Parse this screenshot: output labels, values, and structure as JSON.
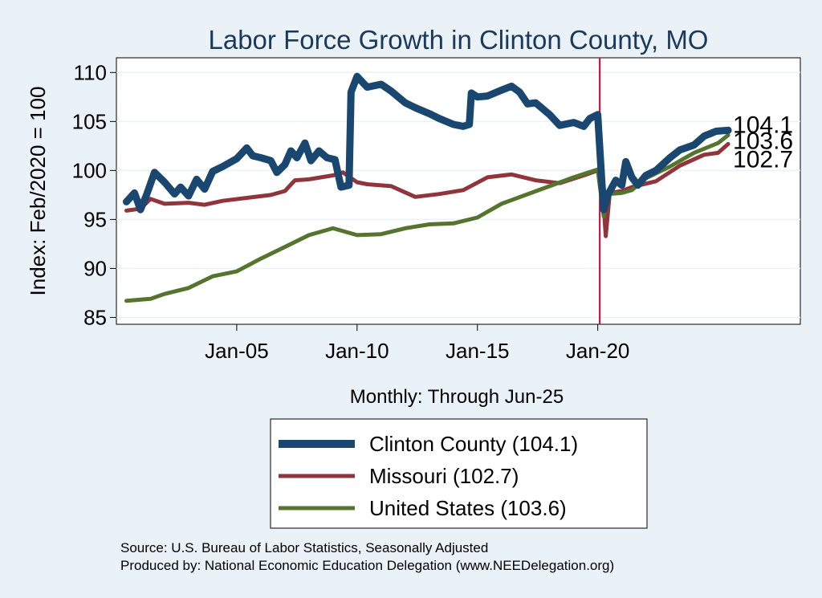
{
  "colors": {
    "background": "#eaf1f7",
    "plot_background": "#ffffff",
    "clinton": "#1a476f",
    "missouri": "#90353b",
    "united_states": "#55752f",
    "reference_line": "#c10534",
    "title": "#1a3a5c",
    "grid": "#eaf1f7"
  },
  "chart_data": {
    "type": "line",
    "title": "Labor Force Growth in Clinton  County, MO",
    "xlabel": "Monthly: Through Jun-25",
    "ylabel": "Index: Feb/2020 = 100",
    "ylim": [
      84.3,
      111.5
    ],
    "xlim": [
      "2000-01",
      "2028-06"
    ],
    "yticks": [
      85,
      90,
      95,
      100,
      105,
      110
    ],
    "xticks": [
      {
        "date": "2005-01",
        "label": "Jan-05"
      },
      {
        "date": "2010-01",
        "label": "Jan-10"
      },
      {
        "date": "2015-01",
        "label": "Jan-15"
      },
      {
        "date": "2020-01",
        "label": "Jan-20"
      }
    ],
    "reference_line": {
      "date": "2020-02"
    },
    "grid": true,
    "series": [
      {
        "name": "Clinton  County (104.1)",
        "key": "clinton",
        "end_label": "104.1",
        "points": [
          [
            "2000-06",
            96.8
          ],
          [
            "2000-10",
            97.7
          ],
          [
            "2001-01",
            96.0
          ],
          [
            "2001-04",
            97.5
          ],
          [
            "2001-08",
            99.8
          ],
          [
            "2002-01",
            98.8
          ],
          [
            "2002-06",
            97.6
          ],
          [
            "2002-09",
            98.3
          ],
          [
            "2003-01",
            97.4
          ],
          [
            "2003-05",
            99.1
          ],
          [
            "2003-09",
            98.1
          ],
          [
            "2004-01",
            99.9
          ],
          [
            "2004-06",
            100.4
          ],
          [
            "2005-01",
            101.2
          ],
          [
            "2005-06",
            102.3
          ],
          [
            "2005-09",
            101.5
          ],
          [
            "2006-01",
            101.3
          ],
          [
            "2006-06",
            101.0
          ],
          [
            "2006-09",
            99.8
          ],
          [
            "2007-01",
            100.6
          ],
          [
            "2007-04",
            102.0
          ],
          [
            "2007-07",
            101.3
          ],
          [
            "2007-11",
            102.8
          ],
          [
            "2008-02",
            101.0
          ],
          [
            "2008-06",
            102.0
          ],
          [
            "2008-10",
            101.3
          ],
          [
            "2009-02",
            101.1
          ],
          [
            "2009-05",
            98.3
          ],
          [
            "2009-09",
            98.5
          ],
          [
            "2009-10",
            108.0
          ],
          [
            "2010-01",
            109.6
          ],
          [
            "2010-06",
            108.5
          ],
          [
            "2011-01",
            108.8
          ],
          [
            "2011-06",
            108.1
          ],
          [
            "2012-01",
            106.9
          ],
          [
            "2012-06",
            106.4
          ],
          [
            "2013-01",
            105.8
          ],
          [
            "2013-06",
            105.3
          ],
          [
            "2014-01",
            104.7
          ],
          [
            "2014-06",
            104.5
          ],
          [
            "2014-09",
            104.7
          ],
          [
            "2014-10",
            107.9
          ],
          [
            "2015-01",
            107.5
          ],
          [
            "2015-06",
            107.6
          ],
          [
            "2016-01",
            108.2
          ],
          [
            "2016-06",
            108.6
          ],
          [
            "2016-10",
            108.0
          ],
          [
            "2017-02",
            106.8
          ],
          [
            "2017-06",
            106.9
          ],
          [
            "2018-01",
            105.7
          ],
          [
            "2018-06",
            104.6
          ],
          [
            "2019-01",
            104.9
          ],
          [
            "2019-06",
            104.5
          ],
          [
            "2019-09",
            105.3
          ],
          [
            "2020-01",
            105.7
          ],
          [
            "2020-03",
            99.0
          ],
          [
            "2020-04",
            96.0
          ],
          [
            "2020-06",
            97.5
          ],
          [
            "2020-10",
            99.0
          ],
          [
            "2021-01",
            98.5
          ],
          [
            "2021-03",
            100.9
          ],
          [
            "2021-06",
            99.3
          ],
          [
            "2021-09",
            98.5
          ],
          [
            "2022-01",
            99.5
          ],
          [
            "2022-06",
            100.0
          ],
          [
            "2023-01",
            101.3
          ],
          [
            "2023-06",
            102.1
          ],
          [
            "2024-01",
            102.6
          ],
          [
            "2024-06",
            103.5
          ],
          [
            "2024-12",
            104.0
          ],
          [
            "2025-06",
            104.1
          ]
        ]
      },
      {
        "name": "Missouri (102.7)",
        "key": "missouri",
        "end_label": "102.7",
        "points": [
          [
            "2000-06",
            95.9
          ],
          [
            "2001-01",
            96.1
          ],
          [
            "2001-06",
            97.1
          ],
          [
            "2002-01",
            96.6
          ],
          [
            "2003-01",
            96.7
          ],
          [
            "2003-09",
            96.5
          ],
          [
            "2004-06",
            96.9
          ],
          [
            "2005-06",
            97.2
          ],
          [
            "2006-06",
            97.5
          ],
          [
            "2007-01",
            97.9
          ],
          [
            "2007-06",
            99.0
          ],
          [
            "2008-01",
            99.1
          ],
          [
            "2009-01",
            99.5
          ],
          [
            "2009-06",
            99.8
          ],
          [
            "2010-01",
            98.8
          ],
          [
            "2010-06",
            98.6
          ],
          [
            "2011-06",
            98.4
          ],
          [
            "2012-06",
            97.3
          ],
          [
            "2013-06",
            97.6
          ],
          [
            "2014-06",
            98.0
          ],
          [
            "2015-06",
            99.3
          ],
          [
            "2016-06",
            99.6
          ],
          [
            "2017-06",
            99.0
          ],
          [
            "2018-06",
            98.7
          ],
          [
            "2019-06",
            99.5
          ],
          [
            "2020-01",
            100.0
          ],
          [
            "2020-03",
            99.2
          ],
          [
            "2020-05",
            93.3
          ],
          [
            "2020-07",
            97.7
          ],
          [
            "2021-01",
            97.9
          ],
          [
            "2021-06",
            98.3
          ],
          [
            "2022-06",
            98.9
          ],
          [
            "2023-06",
            100.5
          ],
          [
            "2024-06",
            101.6
          ],
          [
            "2025-01",
            101.8
          ],
          [
            "2025-06",
            102.7
          ]
        ]
      },
      {
        "name": "United States (103.6)",
        "key": "united_states",
        "end_label": "103.6",
        "points": [
          [
            "2000-06",
            86.7
          ],
          [
            "2001-06",
            86.9
          ],
          [
            "2002-01",
            87.4
          ],
          [
            "2003-01",
            88.0
          ],
          [
            "2004-01",
            89.2
          ],
          [
            "2005-01",
            89.7
          ],
          [
            "2006-01",
            91.0
          ],
          [
            "2007-01",
            92.2
          ],
          [
            "2008-01",
            93.4
          ],
          [
            "2009-01",
            94.1
          ],
          [
            "2010-01",
            93.4
          ],
          [
            "2011-01",
            93.5
          ],
          [
            "2012-01",
            94.1
          ],
          [
            "2013-01",
            94.5
          ],
          [
            "2014-01",
            94.6
          ],
          [
            "2015-01",
            95.2
          ],
          [
            "2016-01",
            96.6
          ],
          [
            "2017-01",
            97.5
          ],
          [
            "2018-01",
            98.4
          ],
          [
            "2019-01",
            99.3
          ],
          [
            "2020-01",
            100.1
          ],
          [
            "2020-04",
            95.3
          ],
          [
            "2020-06",
            97.6
          ],
          [
            "2021-01",
            97.7
          ],
          [
            "2021-06",
            98.0
          ],
          [
            "2022-01",
            99.2
          ],
          [
            "2023-01",
            100.4
          ],
          [
            "2024-01",
            101.8
          ],
          [
            "2025-01",
            102.8
          ],
          [
            "2025-06",
            103.6
          ]
        ]
      }
    ],
    "legend": {
      "placement": "bottom",
      "entries": [
        "Clinton  County (104.1)",
        "Missouri (102.7)",
        "United States (103.6)"
      ]
    }
  },
  "footer": {
    "source": "Source: U.S. Bureau of Labor Statistics, Seasonally Adjusted",
    "produced_by": "Produced by: National Economic Education Delegation (www.NEEDelegation.org)"
  }
}
